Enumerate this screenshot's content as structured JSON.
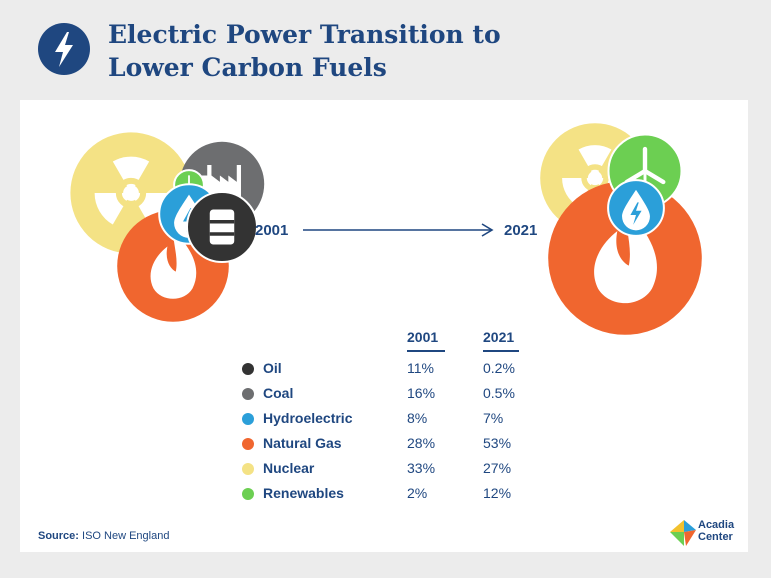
{
  "header": {
    "title_line1": "Electric Power Transition to",
    "title_line2": "Lower Carbon Fuels",
    "icon": "lightning-bolt-icon",
    "color_navy": "#1f4780"
  },
  "chart_data": {
    "type": "bubble-comparison",
    "title": "Electric Power Transition to Lower Carbon Fuels",
    "periods": [
      "2001",
      "2021"
    ],
    "unit": "%",
    "series": [
      {
        "name": "Oil",
        "icon": "oil-barrel-icon",
        "color": "#333333",
        "values": [
          11,
          0.2
        ],
        "labels": [
          "11%",
          "0.2%"
        ]
      },
      {
        "name": "Coal",
        "icon": "factory-icon",
        "color": "#6d6e70",
        "values": [
          16,
          0.5
        ],
        "labels": [
          "16%",
          "0.5%"
        ]
      },
      {
        "name": "Hydroelectric",
        "icon": "water-drop-bolt-icon",
        "color": "#2b9fd9",
        "values": [
          8,
          7
        ],
        "labels": [
          "8%",
          "7%"
        ]
      },
      {
        "name": "Natural Gas",
        "icon": "flame-icon",
        "color": "#f0662f",
        "values": [
          28,
          53
        ],
        "labels": [
          "28%",
          "53%"
        ]
      },
      {
        "name": "Nuclear",
        "icon": "radiation-icon",
        "color": "#f4e285",
        "values": [
          33,
          27
        ],
        "labels": [
          "33%",
          "27%"
        ]
      },
      {
        "name": "Renewables",
        "icon": "wind-turbine-icon",
        "color": "#6ccf52",
        "values": [
          2,
          12
        ],
        "labels": [
          "2%",
          "12%"
        ]
      }
    ]
  },
  "footer": {
    "source_label": "Source:",
    "source_text": "ISO New England",
    "brand_line1": "Acadia",
    "brand_line2": "Center"
  }
}
